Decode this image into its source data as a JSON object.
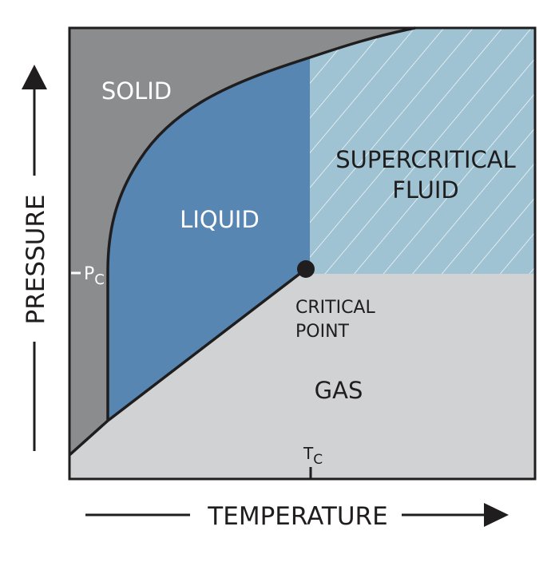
{
  "regions": {
    "solid": "SOLID",
    "liquid": "LIQUID",
    "supercritical_line1": "SUPERCRITICAL",
    "supercritical_line2": "FLUID",
    "gas": "GAS"
  },
  "critical_point": {
    "line1": "CRITICAL",
    "line2": "POINT"
  },
  "pc_label": {
    "main": "P",
    "sub": "C"
  },
  "tc_label": {
    "main": "T",
    "sub": "C"
  },
  "axes": {
    "x_label": "TEMPERATURE",
    "y_label": "PRESSURE"
  },
  "colors": {
    "solid": "#8a8c8d",
    "liquid": "#5786b3",
    "supercritical": "#a0c3d3",
    "gas": "#d1d2d4",
    "line": "#1f1d1e"
  }
}
